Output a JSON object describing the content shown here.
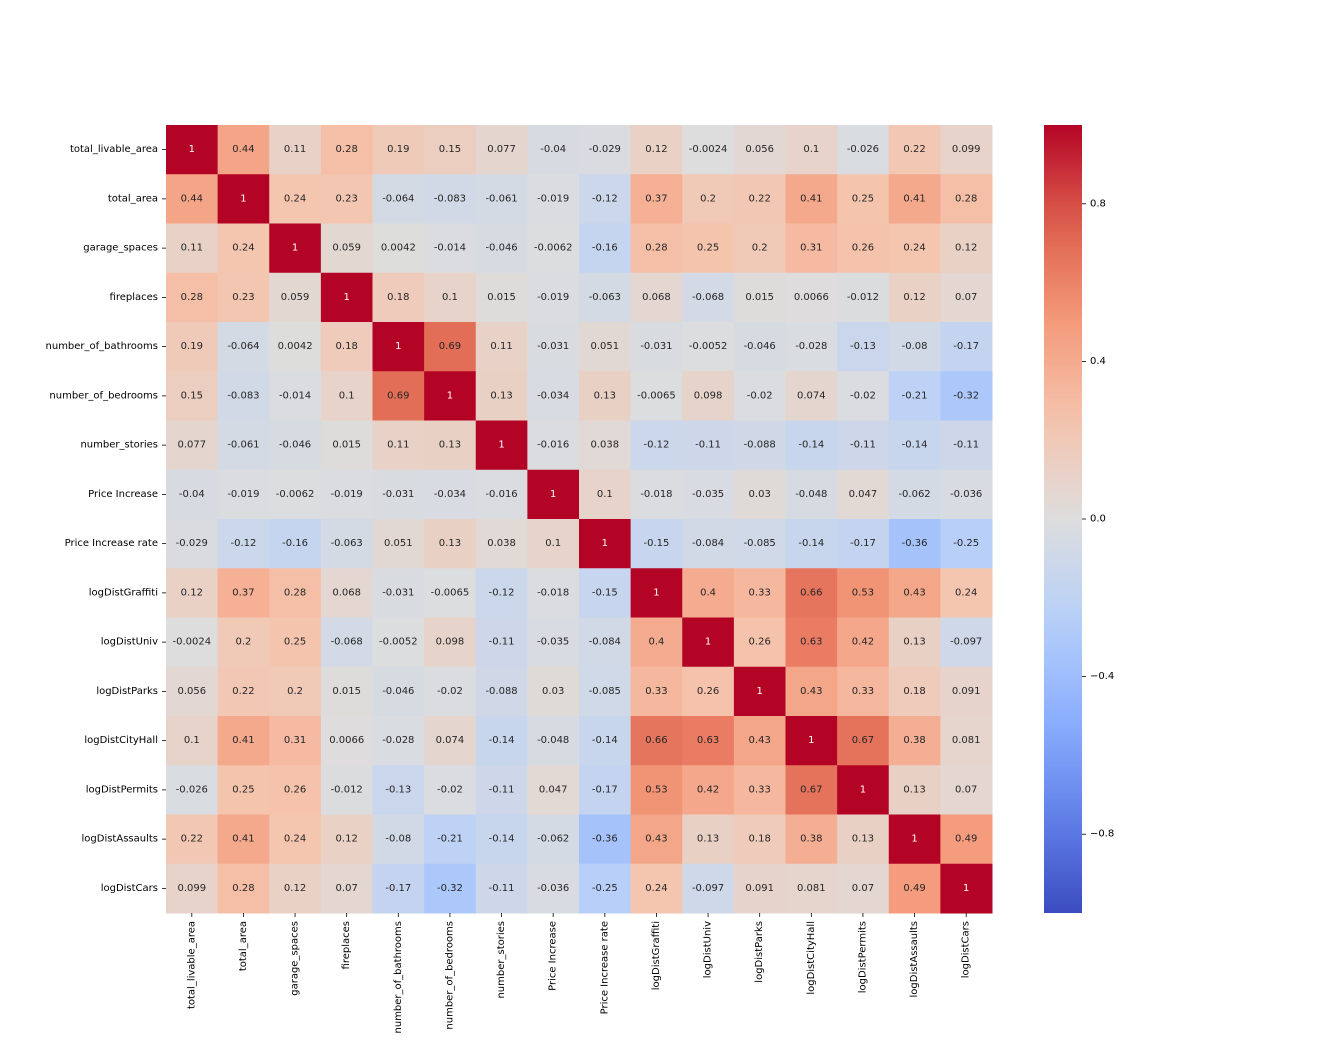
{
  "chart_data": {
    "type": "heatmap",
    "title": "",
    "colormap": "coolwarm",
    "vmin": -1,
    "vmax": 1,
    "row_labels": [
      "total_livable_area",
      "total_area",
      "garage_spaces",
      "fireplaces",
      "number_of_bathrooms",
      "number_of_bedrooms",
      "number_stories",
      "Price Increase",
      "Price Increase rate",
      "logDistGraffiti",
      "logDistUniv",
      "logDistParks",
      "logDistCityHall",
      "logDistPermits",
      "logDistAssaults",
      "logDistCars"
    ],
    "col_labels": [
      "total_livable_area",
      "total_area",
      "garage_spaces",
      "fireplaces",
      "number_of_bathrooms",
      "number_of_bedrooms",
      "number_stories",
      "Price Increase",
      "Price Increase rate",
      "logDistGraffiti",
      "logDistUniv",
      "logDistParks",
      "logDistCityHall",
      "logDistPermits",
      "logDistAssaults",
      "logDistCars"
    ],
    "values": [
      [
        1,
        0.44,
        0.11,
        0.28,
        0.19,
        0.15,
        0.077,
        -0.04,
        -0.029,
        0.12,
        -0.0024,
        0.056,
        0.1,
        -0.026,
        0.22,
        0.099
      ],
      [
        0.44,
        1,
        0.24,
        0.23,
        -0.064,
        -0.083,
        -0.061,
        -0.019,
        -0.12,
        0.37,
        0.2,
        0.22,
        0.41,
        0.25,
        0.41,
        0.28
      ],
      [
        0.11,
        0.24,
        1,
        0.059,
        0.0042,
        -0.014,
        -0.046,
        -0.0062,
        -0.16,
        0.28,
        0.25,
        0.2,
        0.31,
        0.26,
        0.24,
        0.12
      ],
      [
        0.28,
        0.23,
        0.059,
        1,
        0.18,
        0.1,
        0.015,
        -0.019,
        -0.063,
        0.068,
        -0.068,
        0.015,
        0.0066,
        -0.012,
        0.12,
        0.07
      ],
      [
        0.19,
        -0.064,
        0.0042,
        0.18,
        1,
        0.69,
        0.11,
        -0.031,
        0.051,
        -0.031,
        -0.0052,
        -0.046,
        -0.028,
        -0.13,
        -0.08,
        -0.17
      ],
      [
        0.15,
        -0.083,
        -0.014,
        0.1,
        0.69,
        1,
        0.13,
        -0.034,
        0.13,
        -0.0065,
        0.098,
        -0.02,
        0.074,
        -0.02,
        -0.21,
        -0.32
      ],
      [
        0.077,
        -0.061,
        -0.046,
        0.015,
        0.11,
        0.13,
        1,
        -0.016,
        0.038,
        -0.12,
        -0.11,
        -0.088,
        -0.14,
        -0.11,
        -0.14,
        -0.11
      ],
      [
        -0.04,
        -0.019,
        -0.0062,
        -0.019,
        -0.031,
        -0.034,
        -0.016,
        1,
        0.1,
        -0.018,
        -0.035,
        0.03,
        -0.048,
        0.047,
        -0.062,
        -0.036
      ],
      [
        -0.029,
        -0.12,
        -0.16,
        -0.063,
        0.051,
        0.13,
        0.038,
        0.1,
        1,
        -0.15,
        -0.084,
        -0.085,
        -0.14,
        -0.17,
        -0.36,
        -0.25
      ],
      [
        0.12,
        0.37,
        0.28,
        0.068,
        -0.031,
        -0.0065,
        -0.12,
        -0.018,
        -0.15,
        1,
        0.4,
        0.33,
        0.66,
        0.53,
        0.43,
        0.24
      ],
      [
        -0.0024,
        0.2,
        0.25,
        -0.068,
        -0.0052,
        0.098,
        -0.11,
        -0.035,
        -0.084,
        0.4,
        1,
        0.26,
        0.63,
        0.42,
        0.13,
        -0.097
      ],
      [
        0.056,
        0.22,
        0.2,
        0.015,
        -0.046,
        -0.02,
        -0.088,
        0.03,
        -0.085,
        0.33,
        0.26,
        1,
        0.43,
        0.33,
        0.18,
        0.091
      ],
      [
        0.1,
        0.41,
        0.31,
        0.0066,
        -0.028,
        0.074,
        -0.14,
        -0.048,
        -0.14,
        0.66,
        0.63,
        0.43,
        1,
        0.67,
        0.38,
        0.081
      ],
      [
        -0.026,
        0.25,
        0.26,
        -0.012,
        -0.13,
        -0.02,
        -0.11,
        0.047,
        -0.17,
        0.53,
        0.42,
        0.33,
        0.67,
        1,
        0.13,
        0.07
      ],
      [
        0.22,
        0.41,
        0.24,
        0.12,
        -0.08,
        -0.21,
        -0.14,
        -0.062,
        -0.36,
        0.43,
        0.13,
        0.18,
        0.38,
        0.13,
        1,
        0.49
      ],
      [
        0.099,
        0.28,
        0.12,
        0.07,
        -0.17,
        -0.32,
        -0.11,
        -0.036,
        -0.25,
        0.24,
        -0.097,
        0.091,
        0.081,
        0.07,
        0.49,
        1
      ]
    ],
    "annotations": [
      [
        "1",
        "0.44",
        "0.11",
        "0.28",
        "0.19",
        "0.15",
        "0.077",
        "-0.04",
        "-0.029",
        "0.12",
        "-0.0024",
        "0.056",
        "0.1",
        "-0.026",
        "0.22",
        "0.099"
      ],
      [
        "0.44",
        "1",
        "0.24",
        "0.23",
        "-0.064",
        "-0.083",
        "-0.061",
        "-0.019",
        "-0.12",
        "0.37",
        "0.2",
        "0.22",
        "0.41",
        "0.25",
        "0.41",
        "0.28"
      ],
      [
        "0.11",
        "0.24",
        "1",
        "0.059",
        "0.0042",
        "-0.014",
        "-0.046",
        "-0.0062",
        "-0.16",
        "0.28",
        "0.25",
        "0.2",
        "0.31",
        "0.26",
        "0.24",
        "0.12"
      ],
      [
        "0.28",
        "0.23",
        "0.059",
        "1",
        "0.18",
        "0.1",
        "0.015",
        "-0.019",
        "-0.063",
        "0.068",
        "-0.068",
        "0.015",
        "0.0066",
        "-0.012",
        "0.12",
        "0.07"
      ],
      [
        "0.19",
        "-0.064",
        "0.0042",
        "0.18",
        "1",
        "0.69",
        "0.11",
        "-0.031",
        "0.051",
        "-0.031",
        "-0.0052",
        "-0.046",
        "-0.028",
        "-0.13",
        "-0.08",
        "-0.17"
      ],
      [
        "0.15",
        "-0.083",
        "-0.014",
        "0.1",
        "0.69",
        "1",
        "0.13",
        "-0.034",
        "0.13",
        "-0.0065",
        "0.098",
        "-0.02",
        "0.074",
        "-0.02",
        "-0.21",
        "-0.32"
      ],
      [
        "0.077",
        "-0.061",
        "-0.046",
        "0.015",
        "0.11",
        "0.13",
        "1",
        "-0.016",
        "0.038",
        "-0.12",
        "-0.11",
        "-0.088",
        "-0.14",
        "-0.11",
        "-0.14",
        "-0.11"
      ],
      [
        "-0.04",
        "-0.019",
        "-0.0062",
        "-0.019",
        "-0.031",
        "-0.034",
        "-0.016",
        "1",
        "0.1",
        "-0.018",
        "-0.035",
        "0.03",
        "-0.048",
        "0.047",
        "-0.062",
        "-0.036"
      ],
      [
        "-0.029",
        "-0.12",
        "-0.16",
        "-0.063",
        "0.051",
        "0.13",
        "0.038",
        "0.1",
        "1",
        "-0.15",
        "-0.084",
        "-0.085",
        "-0.14",
        "-0.17",
        "-0.36",
        "-0.25"
      ],
      [
        "0.12",
        "0.37",
        "0.28",
        "0.068",
        "-0.031",
        "-0.0065",
        "-0.12",
        "-0.018",
        "-0.15",
        "1",
        "0.4",
        "0.33",
        "0.66",
        "0.53",
        "0.43",
        "0.24"
      ],
      [
        "-0.0024",
        "0.2",
        "0.25",
        "-0.068",
        "-0.0052",
        "0.098",
        "-0.11",
        "-0.035",
        "-0.084",
        "0.4",
        "1",
        "0.26",
        "0.63",
        "0.42",
        "0.13",
        "-0.097"
      ],
      [
        "0.056",
        "0.22",
        "0.2",
        "0.015",
        "-0.046",
        "-0.02",
        "-0.088",
        "0.03",
        "-0.085",
        "0.33",
        "0.26",
        "1",
        "0.43",
        "0.33",
        "0.18",
        "0.091"
      ],
      [
        "0.1",
        "0.41",
        "0.31",
        "0.0066",
        "-0.028",
        "0.074",
        "-0.14",
        "-0.048",
        "-0.14",
        "0.66",
        "0.63",
        "0.43",
        "1",
        "0.67",
        "0.38",
        "0.081"
      ],
      [
        "-0.026",
        "0.25",
        "0.26",
        "-0.012",
        "-0.13",
        "-0.02",
        "-0.11",
        "0.047",
        "-0.17",
        "0.53",
        "0.42",
        "0.33",
        "0.67",
        "1",
        "0.13",
        "0.07"
      ],
      [
        "0.22",
        "0.41",
        "0.24",
        "0.12",
        "-0.08",
        "-0.21",
        "-0.14",
        "-0.062",
        "-0.36",
        "0.43",
        "0.13",
        "0.18",
        "0.38",
        "0.13",
        "1",
        "0.49"
      ],
      [
        "0.099",
        "0.28",
        "0.12",
        "0.07",
        "-0.17",
        "-0.32",
        "-0.11",
        "-0.036",
        "-0.25",
        "0.24",
        "-0.097",
        "0.091",
        "0.081",
        "0.07",
        "0.49",
        "1"
      ]
    ],
    "colorbar": {
      "ticks": [
        0.8,
        0.4,
        0.0,
        -0.4,
        -0.8
      ],
      "tick_labels": [
        "0.8",
        "0.4",
        "0.0",
        "−0.4",
        "−0.8"
      ]
    }
  }
}
